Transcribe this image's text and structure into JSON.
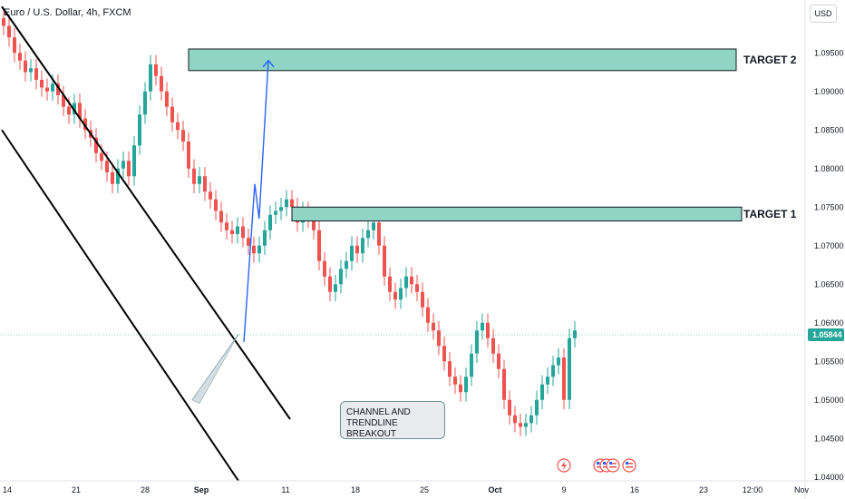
{
  "header": {
    "symbol_title": "Euro / U.S. Dollar, 4h, FXCM",
    "currency_button": "USD"
  },
  "annotations": {
    "target1": "TARGET 1",
    "target2": "TARGET 2",
    "callout": "CHANNEL AND TRENDLINE BREAKOUT"
  },
  "colors": {
    "up": "#26a69a",
    "down": "#ef5350",
    "zone": "#8fd4c4",
    "projection": "#2962ff",
    "price_tag": "#26a69a"
  },
  "events": {
    "lightning_icon": "lightning-icon",
    "us_flag_icons": [
      "us-flag-icon",
      "us-flag-icon",
      "us-flag-icon",
      "us-flag-icon"
    ]
  },
  "chart_data": {
    "type": "candlestick",
    "instrument": "EURUSD",
    "timeframe": "4h",
    "y_ticks": [
      "1.09500",
      "1.09000",
      "1.08500",
      "1.08000",
      "1.07500",
      "1.07000",
      "1.06500",
      "1.06000",
      "1.05500",
      "1.05000",
      "1.04500",
      "1.04000"
    ],
    "y_tick_values": [
      1.095,
      1.09,
      1.085,
      1.08,
      1.075,
      1.07,
      1.065,
      1.06,
      1.055,
      1.05,
      1.045,
      1.04
    ],
    "x_ticks": [
      "14",
      "21",
      "28",
      "Sep",
      "11",
      "18",
      "25",
      "Oct",
      "9",
      "16",
      "23",
      "12:00",
      "Nov"
    ],
    "ylim": [
      1.0395,
      1.0995
    ],
    "last_price": "1.05844",
    "last_price_value": 1.05844,
    "zones": [
      {
        "name": "TARGET 2",
        "top": 1.0955,
        "bottom": 1.0927
      },
      {
        "name": "TARGET 1",
        "top": 1.075,
        "bottom": 1.0732
      }
    ],
    "channel_upper": [
      [
        0,
        1.101
      ],
      [
        53,
        1.0475
      ]
    ],
    "channel_lower": [
      [
        0,
        1.085
      ],
      [
        43.5,
        1.0395
      ]
    ],
    "trendline": [
      [
        35,
        1.05
      ],
      [
        43.5,
        1.0585
      ]
    ],
    "projection": [
      [
        44.5,
        1.0575
      ],
      [
        46.5,
        1.078
      ],
      [
        47.3,
        1.0735
      ],
      [
        49,
        1.094
      ]
    ],
    "closes": [
      1.0985,
      1.097,
      1.095,
      1.094,
      1.0925,
      1.093,
      1.0915,
      1.0905,
      1.09,
      1.091,
      1.0895,
      1.088,
      1.087,
      1.0885,
      1.0865,
      1.085,
      1.084,
      1.082,
      1.081,
      1.0795,
      1.078,
      1.08,
      1.081,
      1.079,
      1.083,
      1.087,
      1.09,
      1.0935,
      1.092,
      1.09,
      1.088,
      1.086,
      1.085,
      1.0835,
      1.08,
      1.078,
      1.079,
      1.077,
      1.076,
      1.0745,
      1.073,
      1.072,
      1.0715,
      1.0725,
      1.071,
      1.07,
      1.069,
      1.07,
      1.072,
      1.074,
      1.0745,
      1.075,
      1.076,
      1.075,
      1.073,
      1.0745,
      1.0735,
      1.072,
      1.068,
      1.066,
      1.064,
      1.065,
      1.067,
      1.068,
      1.07,
      1.069,
      1.071,
      1.072,
      1.073,
      1.07,
      1.066,
      1.064,
      1.063,
      1.0645,
      1.066,
      1.065,
      1.064,
      1.062,
      1.06,
      1.059,
      1.057,
      1.055,
      1.053,
      1.052,
      1.051,
      1.053,
      1.056,
      1.059,
      1.06,
      1.058,
      1.056,
      1.054,
      1.05,
      1.048,
      1.047,
      1.0465,
      1.047,
      1.048,
      1.05,
      1.052,
      1.053,
      1.0545,
      1.0555,
      1.05,
      1.058,
      1.059
    ]
  }
}
